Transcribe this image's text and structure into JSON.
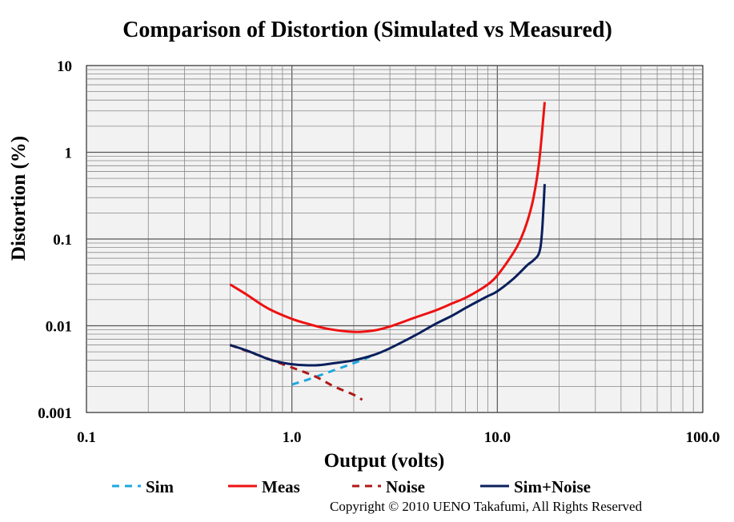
{
  "chart_data": {
    "type": "line",
    "title": "Comparison of Distortion (Simulated vs Measured)",
    "xlabel": "Output (volts)",
    "ylabel": "Distortion (%)",
    "x_scale": "log",
    "y_scale": "log",
    "xlim": [
      0.1,
      100
    ],
    "ylim": [
      0.001,
      10
    ],
    "x_ticks": [
      "0.1",
      "1.0",
      "10.0",
      "100.0"
    ],
    "y_ticks": [
      "0.001",
      "0.01",
      "0.1",
      "1",
      "10"
    ],
    "grid": true,
    "legend_position": "bottom",
    "series": [
      {
        "name": "Sim",
        "color": "#1ea7e0",
        "dash": "dashed",
        "x": [
          1.0,
          1.2,
          1.5,
          2.0,
          2.4
        ],
        "y": [
          0.0021,
          0.0024,
          0.0029,
          0.0037,
          0.0044
        ]
      },
      {
        "name": "Meas",
        "color": "#ee1111",
        "dash": "solid",
        "x": [
          0.5,
          0.6,
          0.7,
          0.8,
          1.0,
          1.2,
          1.5,
          2.0,
          2.5,
          3.0,
          4.0,
          5.0,
          6.0,
          7.0,
          8.0,
          9.0,
          10.0,
          12.0,
          13.0,
          14.0,
          15.0,
          16.0,
          17.0
        ],
        "y": [
          0.03,
          0.023,
          0.018,
          0.015,
          0.012,
          0.0105,
          0.0092,
          0.0085,
          0.0088,
          0.0098,
          0.0125,
          0.015,
          0.018,
          0.021,
          0.025,
          0.03,
          0.038,
          0.07,
          0.1,
          0.16,
          0.3,
          0.8,
          3.8
        ]
      },
      {
        "name": "Noise",
        "color": "#b01818",
        "dash": "dashed",
        "x": [
          0.5,
          0.7,
          1.0,
          1.3,
          1.6,
          2.0,
          2.2
        ],
        "y": [
          0.006,
          0.0045,
          0.0033,
          0.0026,
          0.002,
          0.0016,
          0.0014
        ]
      },
      {
        "name": "Sim+Noise",
        "color": "#0a1f5c",
        "dash": "solid",
        "x": [
          0.5,
          0.6,
          0.7,
          0.8,
          1.0,
          1.3,
          1.6,
          2.0,
          2.5,
          3.0,
          4.0,
          5.0,
          6.0,
          7.0,
          8.0,
          9.0,
          10.0,
          12.0,
          14.0,
          15.0,
          16.0,
          16.5,
          17.0
        ],
        "y": [
          0.006,
          0.0052,
          0.0045,
          0.004,
          0.0036,
          0.0035,
          0.0037,
          0.004,
          0.0046,
          0.0055,
          0.0078,
          0.0105,
          0.013,
          0.016,
          0.019,
          0.022,
          0.025,
          0.035,
          0.05,
          0.057,
          0.07,
          0.12,
          0.43
        ]
      }
    ]
  },
  "copyright": "Copyright © 2010 UENO Takafumi, All Rights Reserved"
}
